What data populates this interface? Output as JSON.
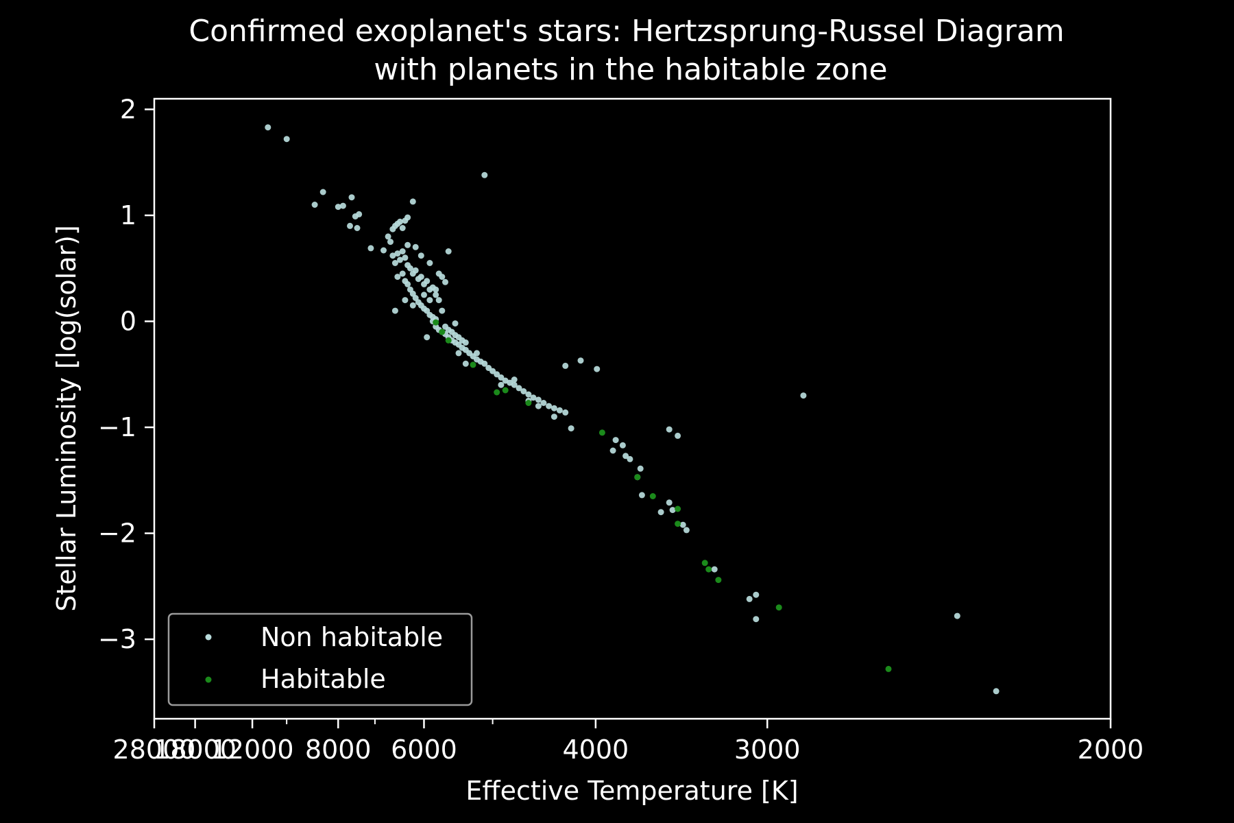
{
  "chart_data": {
    "type": "scatter",
    "title_line1": "Confirmed exoplanet's stars: Hertzsprung-Russel Diagram",
    "title_line2": "with planets in the habitable zone",
    "xlabel": "Effective Temperature [K]",
    "ylabel": "Stellar Luminosity [log(solar)]",
    "x_scale": "reciprocal",
    "xlim": [
      28000,
      2000
    ],
    "ylim": [
      -3.75,
      2.1
    ],
    "x_ticks": [
      28000,
      18000,
      12000,
      8000,
      6000,
      4000,
      3000,
      2000
    ],
    "x_tick_labels": [
      "28000",
      "18000",
      "12000",
      "8000",
      "6000",
      "4000",
      "3000",
      "2000"
    ],
    "x_minor_ticks": [
      10000,
      7000,
      5000
    ],
    "y_ticks": [
      -3,
      -2,
      -1,
      0,
      1,
      2
    ],
    "y_tick_labels": [
      "−3",
      "−2",
      "−1",
      "0",
      "1",
      "2"
    ],
    "grid": false,
    "legend_position": "bottom-left",
    "series": [
      {
        "name": "Non habitable",
        "color": "#b9dcdc",
        "points": [
          [
            11000,
            1.83
          ],
          [
            10000,
            1.72
          ],
          [
            8500,
            1.22
          ],
          [
            8800,
            1.1
          ],
          [
            8000,
            1.08
          ],
          [
            7850,
            1.09
          ],
          [
            7600,
            1.17
          ],
          [
            7500,
            0.99
          ],
          [
            7400,
            1.01
          ],
          [
            7650,
            0.9
          ],
          [
            7450,
            0.88
          ],
          [
            7100,
            0.69
          ],
          [
            6200,
            1.13
          ],
          [
            5100,
            1.38
          ],
          [
            6800,
            0.67
          ],
          [
            6700,
            0.8
          ],
          [
            6650,
            0.75
          ],
          [
            6600,
            0.87
          ],
          [
            6550,
            0.9
          ],
          [
            6500,
            0.92
          ],
          [
            6450,
            0.94
          ],
          [
            6400,
            0.88
          ],
          [
            6350,
            0.95
          ],
          [
            6300,
            0.98
          ],
          [
            6600,
            0.62
          ],
          [
            6500,
            0.64
          ],
          [
            6450,
            0.58
          ],
          [
            6550,
            0.55
          ],
          [
            6400,
            0.66
          ],
          [
            6350,
            0.6
          ],
          [
            6300,
            0.53
          ],
          [
            6250,
            0.5
          ],
          [
            6200,
            0.45
          ],
          [
            6150,
            0.48
          ],
          [
            6100,
            0.4
          ],
          [
            6050,
            0.42
          ],
          [
            6000,
            0.35
          ],
          [
            5950,
            0.38
          ],
          [
            5900,
            0.3
          ],
          [
            5850,
            0.32
          ],
          [
            5800,
            0.25
          ],
          [
            6500,
            0.42
          ],
          [
            6400,
            0.45
          ],
          [
            6350,
            0.38
          ],
          [
            6300,
            0.35
          ],
          [
            6250,
            0.3
          ],
          [
            6200,
            0.26
          ],
          [
            6150,
            0.22
          ],
          [
            6100,
            0.18
          ],
          [
            6050,
            0.15
          ],
          [
            6000,
            0.12
          ],
          [
            5950,
            0.1
          ],
          [
            5900,
            0.06
          ],
          [
            5850,
            0.04
          ],
          [
            5800,
            0.02
          ],
          [
            6300,
            0.72
          ],
          [
            6150,
            0.7
          ],
          [
            6050,
            0.62
          ],
          [
            5900,
            0.55
          ],
          [
            5600,
            0.66
          ],
          [
            5750,
            0.45
          ],
          [
            5700,
            0.42
          ],
          [
            5650,
            0.37
          ],
          [
            5800,
            0.3
          ],
          [
            5750,
            0.2
          ],
          [
            5700,
            0.1
          ],
          [
            5900,
            0.2
          ],
          [
            6000,
            0.25
          ],
          [
            6200,
            0.15
          ],
          [
            6350,
            0.2
          ],
          [
            6550,
            0.1
          ],
          [
            5950,
            -0.15
          ],
          [
            5850,
            0.0
          ],
          [
            5800,
            -0.05
          ],
          [
            5750,
            -0.08
          ],
          [
            5700,
            -0.1
          ],
          [
            5650,
            -0.12
          ],
          [
            5600,
            -0.15
          ],
          [
            5550,
            -0.18
          ],
          [
            5500,
            -0.2
          ],
          [
            5450,
            -0.22
          ],
          [
            5400,
            -0.25
          ],
          [
            5350,
            -0.27
          ],
          [
            5300,
            -0.3
          ],
          [
            5250,
            -0.33
          ],
          [
            5200,
            -0.36
          ],
          [
            5150,
            -0.38
          ],
          [
            5100,
            -0.4
          ],
          [
            5050,
            -0.44
          ],
          [
            5000,
            -0.47
          ],
          [
            4950,
            -0.5
          ],
          [
            4900,
            -0.53
          ],
          [
            4850,
            -0.56
          ],
          [
            4800,
            -0.58
          ],
          [
            4750,
            -0.6
          ],
          [
            4700,
            -0.63
          ],
          [
            4650,
            -0.66
          ],
          [
            4600,
            -0.69
          ],
          [
            4550,
            -0.72
          ],
          [
            4500,
            -0.74
          ],
          [
            4450,
            -0.77
          ],
          [
            4400,
            -0.8
          ],
          [
            4350,
            -0.82
          ],
          [
            4300,
            -0.84
          ],
          [
            4250,
            -0.86
          ],
          [
            5650,
            -0.05
          ],
          [
            5600,
            -0.08
          ],
          [
            5550,
            -0.1
          ],
          [
            5500,
            -0.13
          ],
          [
            5450,
            -0.15
          ],
          [
            5400,
            -0.18
          ],
          [
            5350,
            -0.2
          ],
          [
            5500,
            -0.02
          ],
          [
            5450,
            -0.3
          ],
          [
            5350,
            -0.4
          ],
          [
            5200,
            -0.3
          ],
          [
            4900,
            -0.6
          ],
          [
            4750,
            -0.55
          ],
          [
            4600,
            -0.75
          ],
          [
            4500,
            -0.8
          ],
          [
            4350,
            -0.9
          ],
          [
            4200,
            -1.01
          ],
          [
            4250,
            -0.42
          ],
          [
            4120,
            -0.37
          ],
          [
            3990,
            -0.45
          ],
          [
            3850,
            -1.12
          ],
          [
            3800,
            -1.17
          ],
          [
            3870,
            -1.22
          ],
          [
            3780,
            -1.27
          ],
          [
            3750,
            -1.3
          ],
          [
            3700,
            -1.47
          ],
          [
            3680,
            -1.39
          ],
          [
            3670,
            -1.64
          ],
          [
            3550,
            -1.8
          ],
          [
            3500,
            -1.71
          ],
          [
            3480,
            -1.78
          ],
          [
            3420,
            -1.92
          ],
          [
            3400,
            -1.97
          ],
          [
            3450,
            -1.08
          ],
          [
            3500,
            -1.02
          ],
          [
            3250,
            -2.34
          ],
          [
            3050,
            -2.58
          ],
          [
            3080,
            -2.62
          ],
          [
            3050,
            -2.81
          ],
          [
            2850,
            -0.7
          ],
          [
            2350,
            -2.78
          ],
          [
            2250,
            -3.49
          ]
        ]
      },
      {
        "name": "Habitable",
        "color": "#1b8a1b",
        "points": [
          [
            5800,
            -0.01
          ],
          [
            5700,
            -0.1
          ],
          [
            5600,
            -0.18
          ],
          [
            5250,
            -0.41
          ],
          [
            4950,
            -0.67
          ],
          [
            4850,
            -0.65
          ],
          [
            4600,
            -0.77
          ],
          [
            3950,
            -1.05
          ],
          [
            3700,
            -1.47
          ],
          [
            3600,
            -1.65
          ],
          [
            3450,
            -1.77
          ],
          [
            3450,
            -1.91
          ],
          [
            3300,
            -2.28
          ],
          [
            3280,
            -2.34
          ],
          [
            3230,
            -2.44
          ],
          [
            2950,
            -2.7
          ],
          [
            2550,
            -3.28
          ]
        ]
      }
    ]
  }
}
